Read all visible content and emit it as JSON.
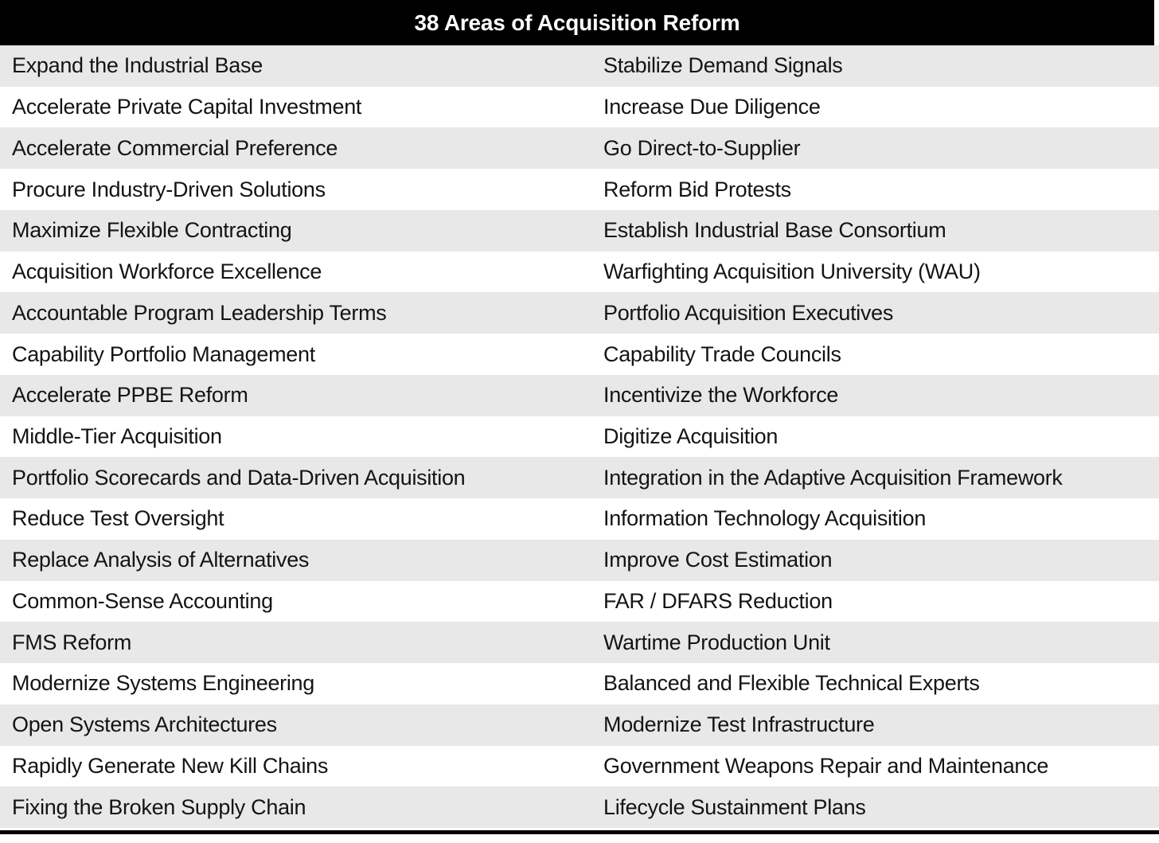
{
  "chart_data": {
    "type": "table",
    "title": "38 Areas of Acquisition Reform",
    "columns": 2,
    "rows": [
      [
        "Expand the Industrial Base",
        "Stabilize Demand Signals"
      ],
      [
        "Accelerate Private Capital Investment",
        "Increase Due Diligence"
      ],
      [
        "Accelerate Commercial Preference",
        "Go Direct-to-Supplier"
      ],
      [
        "Procure Industry-Driven Solutions",
        "Reform Bid Protests"
      ],
      [
        "Maximize Flexible Contracting",
        "Establish Industrial Base Consortium"
      ],
      [
        "Acquisition Workforce Excellence",
        "Warfighting Acquisition University (WAU)"
      ],
      [
        "Accountable Program Leadership Terms",
        "Portfolio Acquisition Executives"
      ],
      [
        "Capability Portfolio Management",
        "Capability Trade Councils"
      ],
      [
        "Accelerate PPBE Reform",
        "Incentivize the Workforce"
      ],
      [
        "Middle-Tier Acquisition",
        "Digitize Acquisition"
      ],
      [
        "Portfolio Scorecards and Data-Driven Acquisition",
        "Integration in the Adaptive Acquisition Framework"
      ],
      [
        "Reduce Test Oversight",
        "Information Technology Acquisition"
      ],
      [
        "Replace Analysis of Alternatives",
        "Improve Cost Estimation"
      ],
      [
        "Common-Sense Accounting",
        "FAR / DFARS Reduction"
      ],
      [
        "FMS Reform",
        "Wartime Production Unit"
      ],
      [
        "Modernize Systems Engineering",
        "Balanced and Flexible Technical Experts"
      ],
      [
        "Open Systems Architectures",
        "Modernize Test Infrastructure"
      ],
      [
        "Rapidly Generate New Kill Chains",
        "Government Weapons Repair and Maintenance"
      ],
      [
        "Fixing the Broken Supply Chain",
        "Lifecycle Sustainment Plans"
      ]
    ],
    "layout": {
      "banded_rows": true,
      "first_band": "gray"
    }
  },
  "colors": {
    "header_bg": "#000000",
    "header_text": "#ffffff",
    "band_gray": "#e8e8e8",
    "band_white": "#ffffff",
    "cell_text": "#141414",
    "bottom_rule": "#000000"
  }
}
